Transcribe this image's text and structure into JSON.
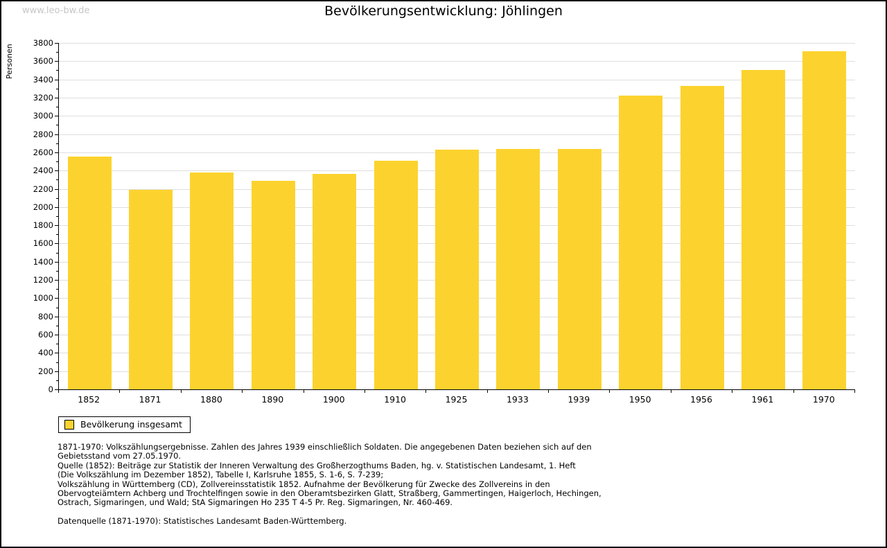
{
  "watermark": "www.leo-bw.de",
  "title": "Bevölkerungsentwicklung: Jöhlingen",
  "chart_data": {
    "type": "bar",
    "title": "Bevölkerungsentwicklung: Jöhlingen",
    "xlabel": "",
    "ylabel": "Personen",
    "categories": [
      "1852",
      "1871",
      "1880",
      "1890",
      "1900",
      "1910",
      "1925",
      "1933",
      "1939",
      "1950",
      "1956",
      "1961",
      "1970"
    ],
    "series": [
      {
        "name": "Bevölkerung insgesamt",
        "values": [
          2550,
          2190,
          2380,
          2290,
          2360,
          2510,
          2630,
          2640,
          2640,
          3220,
          3330,
          3500,
          3710
        ]
      }
    ],
    "ylim": [
      0,
      3800
    ],
    "ytick_step": 200,
    "minor_tick_step": 100,
    "grid": true,
    "gridline_color": "#dedede",
    "bar_color": "#fcd32e",
    "legend_position": "bottom-left"
  },
  "legend": {
    "label": "Bevölkerung insgesamt",
    "swatch_color": "#fcd32e"
  },
  "footer": {
    "lines": [
      "1871-1970: Volkszählungsergebnisse. Zahlen des Jahres 1939 einschließlich Soldaten. Die angegebenen Daten beziehen sich auf den",
      "Gebietsstand vom 27.05.1970.",
      "Quelle (1852): Beiträge zur Statistik der Inneren Verwaltung des Großherzogthums Baden, hg. v. Statistischen Landesamt, 1. Heft",
      "(Die Volkszählung im Dezember 1852), Tabelle I, Karlsruhe 1855, S. 1-6, S. 7-239;",
      "Volkszählung in Württemberg (CD), Zollvereinsstatistik 1852. Aufnahme der Bevölkerung für Zwecke des Zollvereins in den",
      "Obervogteiämtern Achberg und Trochtelfingen sowie in den Oberamtsbezirken Glatt, Straßberg, Gammertingen, Haigerloch, Hechingen,",
      "Ostrach, Sigmaringen, und Wald; StA Sigmaringen Ho 235 T 4-5 Pr. Reg. Sigmaringen, Nr. 460-469."
    ],
    "datasource": "Datenquelle (1871-1970): Statistisches Landesamt Baden-Württemberg."
  },
  "colors": {
    "bar": "#fcd32e",
    "gridline": "#dedede",
    "watermark": "#c6c6c6",
    "axis": "#000000"
  }
}
